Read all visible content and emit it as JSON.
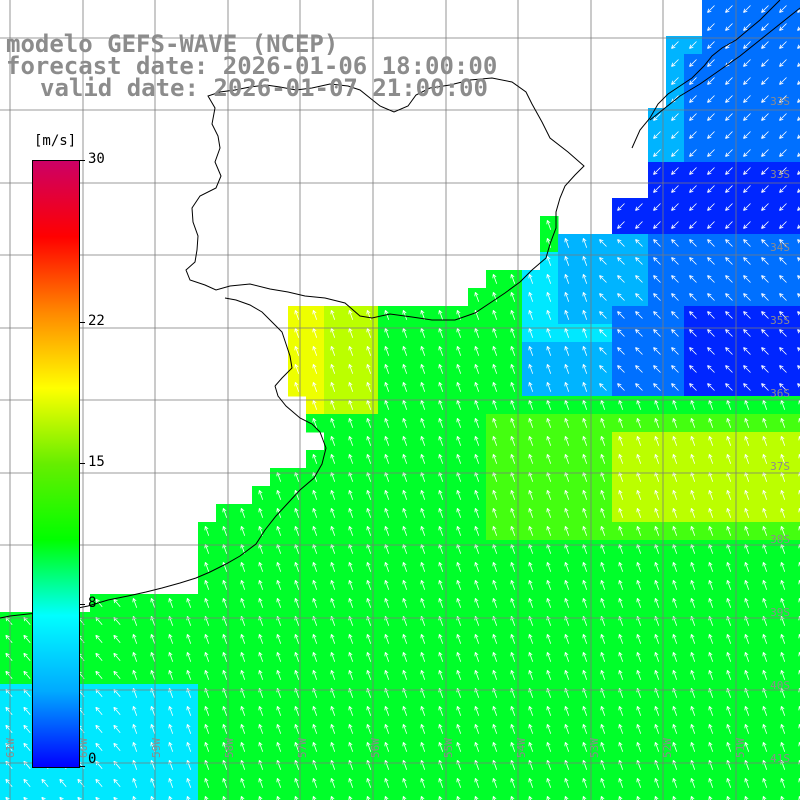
{
  "title": {
    "line1": "modelo GEFS-WAVE (NCEP)",
    "line2": "forecast date: 2026-01-06 18:00:00",
    "line3": "valid date: 2026-01-07 21:00:00"
  },
  "colorbar": {
    "unit": "[m/s]",
    "min": 0,
    "max": 30,
    "ticks": [
      {
        "label": "30",
        "value": 30
      },
      {
        "label": "22",
        "value": 22
      },
      {
        "label": "15",
        "value": 15
      },
      {
        "label": "8",
        "value": 8
      },
      {
        "label": "0",
        "value": 0
      }
    ],
    "colors": [
      "#0000ff",
      "#00aaff",
      "#00ffff",
      "#00ff00",
      "#66ee00",
      "#ffff00",
      "#ff8800",
      "#ff0000",
      "#cc0066"
    ]
  },
  "field": {
    "variable": "wind speed",
    "colors": {
      "deep_blue": "#0026ff",
      "blue": "#0070ff",
      "light_blue": "#00b4ff",
      "cyan": "#00e8ff",
      "green": "#00ff2a",
      "light_green": "#44ff10",
      "yellow_green": "#bbff00",
      "yellow": "#eeff00"
    },
    "arrow_color": "#ffffff",
    "coast_color": "#000000",
    "grid_color": "#7a7a7a"
  },
  "grid_labels": {
    "lat": [
      "33S",
      "33S",
      "34S",
      "35S",
      "36S",
      "37S",
      "38S",
      "39S",
      "40S",
      "41S"
    ],
    "lon": [
      "61W",
      "60W",
      "59W",
      "58W",
      "57W",
      "56W",
      "55W",
      "54W",
      "53W",
      "52W",
      "51W"
    ]
  }
}
